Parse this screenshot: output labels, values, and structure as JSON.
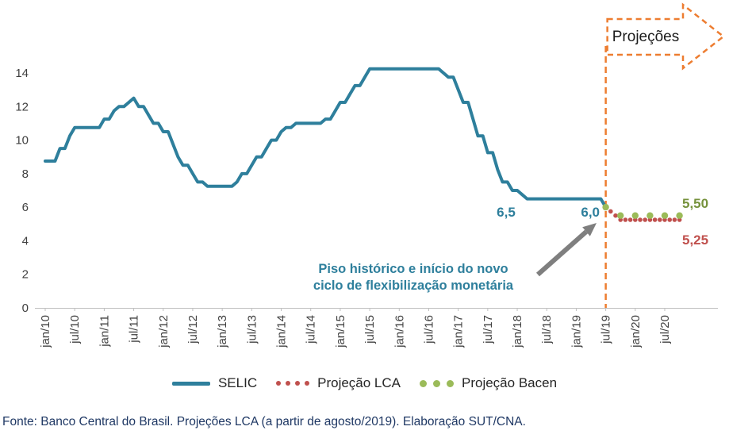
{
  "banner": {
    "label": "Projeções",
    "color": "#ED7D31"
  },
  "annotations": {
    "label_65": "6,5",
    "label_60": "6,0",
    "label_550": "5,50",
    "label_525": "5,25",
    "note_line1": "Piso histórico e início do novo",
    "note_line2": "ciclo de flexibilização monetária"
  },
  "legend": [
    {
      "label": "SELIC",
      "type": "line",
      "color": "#2E7F9C"
    },
    {
      "label": "Projeção LCA",
      "type": "dots",
      "color": "#C0504D"
    },
    {
      "label": "Projeção Bacen",
      "type": "dots",
      "color": "#9BBB59"
    }
  ],
  "footer": "Fonte: Banco Central do Brasil. Projeções LCA (a partir de agosto/2019). Elaboração SUT/CNA.",
  "chart_data": {
    "type": "line",
    "title": "",
    "xlabel": "",
    "ylabel": "",
    "ylim": [
      0,
      14
    ],
    "y_ticks": [
      0,
      2,
      4,
      6,
      8,
      10,
      12,
      14
    ],
    "x_tick_months": [
      0,
      6,
      12,
      18,
      24,
      30,
      36,
      42,
      48,
      54,
      60,
      66,
      72,
      78,
      84,
      90,
      96,
      102,
      108,
      114,
      120,
      126
    ],
    "x_tick_labels": [
      "jan/10",
      "jul/10",
      "jan/11",
      "jul/11",
      "jan/12",
      "jul/12",
      "jan/13",
      "jul/13",
      "jan/14",
      "jul/14",
      "jan/15",
      "jul/15",
      "jan/16",
      "jul/16",
      "jan/17",
      "jul/17",
      "jan/18",
      "jul/18",
      "jan/19",
      "jul/19",
      "jan/20",
      "jul/20"
    ],
    "grid": false,
    "legend_position": "bottom",
    "projection_divider_month": 114,
    "series": [
      {
        "name": "SELIC",
        "style": "line",
        "color": "#2E7F9C",
        "stroke_width": 4,
        "start_month": 0,
        "values": [
          8.75,
          8.75,
          8.75,
          9.5,
          9.5,
          10.25,
          10.75,
          10.75,
          10.75,
          10.75,
          10.75,
          10.75,
          11.25,
          11.25,
          11.75,
          12,
          12,
          12.25,
          12.5,
          12,
          12,
          11.5,
          11,
          11,
          10.5,
          10.5,
          9.75,
          9,
          8.5,
          8.5,
          8,
          7.5,
          7.5,
          7.25,
          7.25,
          7.25,
          7.25,
          7.25,
          7.25,
          7.5,
          8,
          8,
          8.5,
          9,
          9,
          9.5,
          10,
          10,
          10.5,
          10.75,
          10.75,
          11,
          11,
          11,
          11,
          11,
          11,
          11.25,
          11.25,
          11.75,
          12.25,
          12.25,
          12.75,
          13.25,
          13.25,
          13.75,
          14.25,
          14.25,
          14.25,
          14.25,
          14.25,
          14.25,
          14.25,
          14.25,
          14.25,
          14.25,
          14.25,
          14.25,
          14.25,
          14.25,
          14.25,
          14,
          13.75,
          13.75,
          13,
          12.25,
          12.25,
          11.25,
          10.25,
          10.25,
          9.25,
          9.25,
          8.25,
          7.5,
          7.5,
          7,
          7,
          6.75,
          6.5,
          6.5,
          6.5,
          6.5,
          6.5,
          6.5,
          6.5,
          6.5,
          6.5,
          6.5,
          6.5,
          6.5,
          6.5,
          6.5,
          6.5,
          6.5,
          6
        ]
      },
      {
        "name": "Projeção LCA",
        "style": "dots",
        "color": "#C0504D",
        "marker_radius": 2.8,
        "start_month": 115,
        "values": [
          5.75,
          5.5,
          5.25,
          5.25,
          5.25,
          5.25,
          5.25,
          5.25,
          5.25,
          5.25,
          5.25,
          5.25,
          5.25,
          5.25,
          5.25
        ]
      },
      {
        "name": "Projeção Bacen",
        "style": "dots",
        "color": "#9BBB59",
        "marker_radius": 4.2,
        "months": [
          114,
          117,
          120,
          123,
          126,
          129
        ],
        "values": [
          6,
          5.5,
          5.5,
          5.5,
          5.5,
          5.5
        ]
      }
    ]
  }
}
